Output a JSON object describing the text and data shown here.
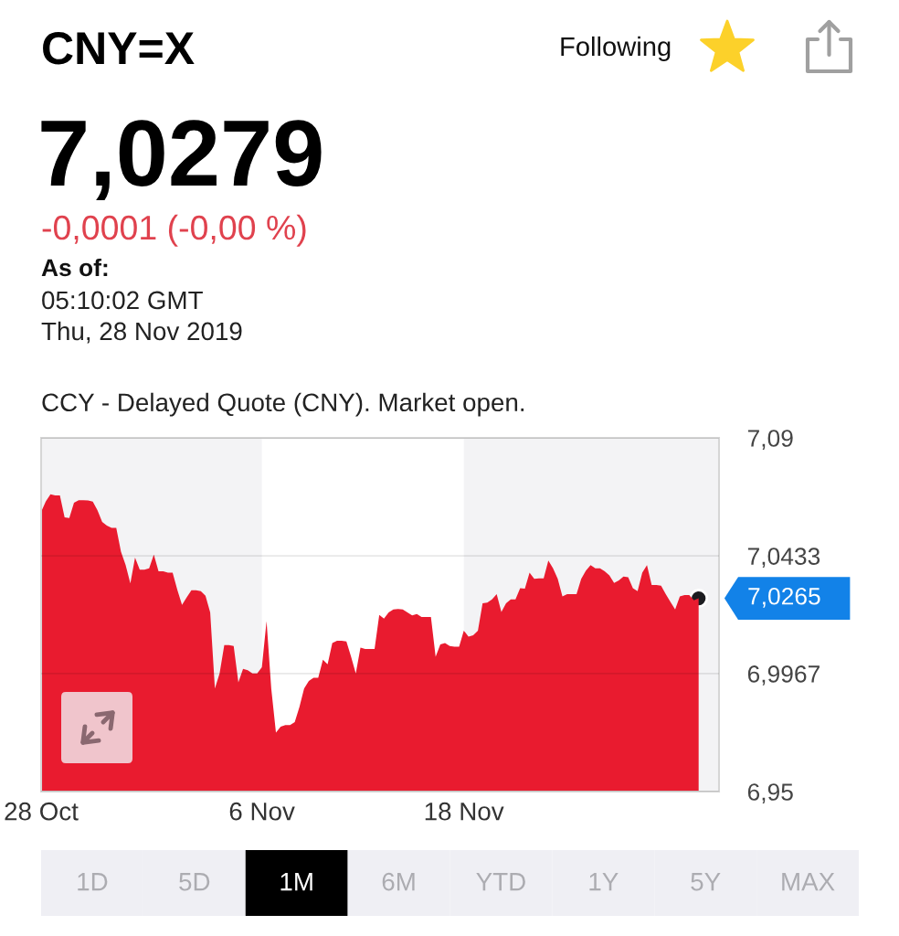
{
  "chart_data": [
    {
      "type": "other",
      "title": "CNY=X",
      "subtitle": "7,0279",
      "annotations": [
        "Following",
        "-0,0001 (-0,00 %)",
        "As of:",
        "05:10:02 GMT",
        "Thu, 28 Nov 2019"
      ]
    },
    {
      "type": "area",
      "title": "CCY - Delayed Quote (CNY). Market open.",
      "categories": [
        "28 Oct",
        null,
        null,
        null,
        null,
        null,
        null,
        null,
        null,
        null,
        null,
        null,
        null,
        null,
        null,
        null,
        null,
        null,
        null,
        null,
        null,
        null,
        null,
        null,
        null,
        null,
        null,
        null,
        null,
        null,
        null,
        null,
        null,
        null,
        null,
        null,
        null,
        null,
        null,
        null,
        null,
        null,
        null,
        null,
        null,
        null,
        null,
        "6 Nov",
        null,
        null,
        null,
        null,
        null,
        null,
        null,
        null,
        null,
        null,
        null,
        null,
        null,
        null,
        null,
        null,
        null,
        null,
        null,
        null,
        null,
        null,
        null,
        null,
        null,
        null,
        null,
        null,
        null,
        null,
        null,
        null,
        null,
        null,
        null,
        null,
        null,
        null,
        null,
        null,
        null,
        null,
        "18 Nov",
        null,
        null,
        null,
        null,
        null,
        null,
        null,
        null,
        null,
        null,
        null,
        null,
        null,
        null,
        null,
        null,
        null,
        null,
        null,
        null,
        null,
        null,
        null,
        null,
        null,
        null,
        null,
        null,
        null,
        null,
        null,
        null,
        null,
        null,
        null,
        null,
        null,
        null,
        null,
        null,
        null,
        null,
        null,
        null,
        null,
        null,
        null,
        null,
        null,
        null
      ],
      "series": [
        {
          "type": "area",
          "color": "#e91b2f",
          "values": [
            7.0607,
            7.0649,
            7.0677,
            7.0672,
            7.0672,
            7.0585,
            7.0583,
            7.0643,
            7.0653,
            7.0653,
            7.0652,
            7.0648,
            7.0613,
            7.0567,
            7.0553,
            7.0544,
            7.0544,
            7.045,
            7.0396,
            7.0324,
            7.0426,
            7.0378,
            7.0378,
            7.0384,
            7.0438,
            7.0372,
            7.0372,
            7.0366,
            7.0366,
            7.0299,
            7.0239,
            7.0269,
            7.0297,
            7.0297,
            7.0293,
            7.0275,
            7.0209,
            6.9908,
            6.9968,
            7.008,
            7.008,
            7.0076,
            6.9932,
            6.9986,
            6.998,
            6.9968,
            6.9968,
            6.9992,
            7.0175,
            6.9908,
            6.9733,
            6.9757,
            6.9763,
            6.9763,
            6.9775,
            6.9835,
            6.9908,
            6.9938,
            6.995,
            6.995,
            7.0022,
            7.0004,
            7.0088,
            7.0097,
            7.0097,
            7.0094,
            7.0034,
            6.9968,
            7.007,
            7.0064,
            7.0064,
            7.0064,
            7.0199,
            7.0185,
            7.0209,
            7.0221,
            7.0223,
            7.0221,
            7.0209,
            7.0197,
            7.0203,
            7.0191,
            7.0191,
            7.0191,
            7.0034,
            7.0082,
            7.0088,
            7.0076,
            7.0073,
            7.0073,
            7.0137,
            7.0113,
            7.0119,
            7.0137,
            7.0245,
            7.0248,
            7.0261,
            7.0281,
            7.0211,
            7.0245,
            7.0261,
            7.0261,
            7.0305,
            7.0303,
            7.0366,
            7.0342,
            7.0344,
            7.0344,
            7.0414,
            7.0384,
            7.0342,
            7.0272,
            7.0281,
            7.0281,
            7.0281,
            7.0342,
            7.0375,
            7.0396,
            7.0384,
            7.0384,
            7.0372,
            7.0356,
            7.0326,
            7.0336,
            7.0351,
            7.0348,
            7.0305,
            7.0293,
            7.0366,
            7.0396,
            7.0318,
            7.0318,
            7.0315,
            7.0281,
            7.0251,
            7.0221,
            7.0272,
            7.0278,
            7.0278,
            7.0257,
            7.0265
          ]
        },
        {
          "type": "scatter",
          "color": "#1c1c20",
          "values": [
            null,
            null,
            null,
            null,
            null,
            null,
            null,
            null,
            null,
            null,
            null,
            null,
            null,
            null,
            null,
            null,
            null,
            null,
            null,
            null,
            null,
            null,
            null,
            null,
            null,
            null,
            null,
            null,
            null,
            null,
            null,
            null,
            null,
            null,
            null,
            null,
            null,
            null,
            null,
            null,
            null,
            null,
            null,
            null,
            null,
            null,
            null,
            null,
            null,
            null,
            null,
            null,
            null,
            null,
            null,
            null,
            null,
            null,
            null,
            null,
            null,
            null,
            null,
            null,
            null,
            null,
            null,
            null,
            null,
            null,
            null,
            null,
            null,
            null,
            null,
            null,
            null,
            null,
            null,
            null,
            null,
            null,
            null,
            null,
            null,
            null,
            null,
            null,
            null,
            null,
            null,
            null,
            null,
            null,
            null,
            null,
            null,
            null,
            null,
            null,
            null,
            null,
            null,
            null,
            null,
            null,
            null,
            null,
            null,
            null,
            null,
            null,
            null,
            null,
            null,
            null,
            null,
            null,
            null,
            null,
            null,
            null,
            null,
            null,
            null,
            null,
            null,
            null,
            null,
            null,
            null,
            null,
            null,
            null,
            null,
            null,
            null,
            null,
            null,
            null,
            7.0265
          ],
          "value_labels": [
            null,
            null,
            null,
            null,
            null,
            null,
            null,
            null,
            null,
            null,
            null,
            null,
            null,
            null,
            null,
            null,
            null,
            null,
            null,
            null,
            null,
            null,
            null,
            null,
            null,
            null,
            null,
            null,
            null,
            null,
            null,
            null,
            null,
            null,
            null,
            null,
            null,
            null,
            null,
            null,
            null,
            null,
            null,
            null,
            null,
            null,
            null,
            null,
            null,
            null,
            null,
            null,
            null,
            null,
            null,
            null,
            null,
            null,
            null,
            null,
            null,
            null,
            null,
            null,
            null,
            null,
            null,
            null,
            null,
            null,
            null,
            null,
            null,
            null,
            null,
            null,
            null,
            null,
            null,
            null,
            null,
            null,
            null,
            null,
            null,
            null,
            null,
            null,
            null,
            null,
            null,
            null,
            null,
            null,
            null,
            null,
            null,
            null,
            null,
            null,
            null,
            null,
            null,
            null,
            null,
            null,
            null,
            null,
            null,
            null,
            null,
            null,
            null,
            null,
            null,
            null,
            null,
            null,
            null,
            null,
            null,
            null,
            null,
            null,
            null,
            null,
            null,
            null,
            null,
            null,
            null,
            null,
            null,
            null,
            null,
            null,
            null,
            null,
            null,
            null,
            "7,0265"
          ]
        }
      ],
      "ylim": [
        6.95,
        7.09
      ],
      "yticks": [
        {
          "value": 6.95,
          "label": "6,95"
        },
        {
          "value": 6.9967,
          "label": "6,9967"
        },
        {
          "value": 7.0433,
          "label": "7,0433"
        },
        {
          "value": 7.09,
          "label": "7,09"
        }
      ],
      "grid": "y",
      "bands": [
        {
          "axis": "x",
          "from": "6 Nov",
          "to": "18 Nov",
          "color": "#ffffff"
        }
      ]
    },
    {
      "type": "other",
      "categories": [
        "1D",
        "5D",
        "1M",
        "6M",
        "YTD",
        "1Y",
        "5Y",
        "MAX"
      ],
      "colors": [
        "#efeff4",
        "#efeff4",
        "#000000",
        "#efeff4",
        "#efeff4",
        "#efeff4",
        "#efeff4",
        "#efeff4"
      ]
    }
  ]
}
